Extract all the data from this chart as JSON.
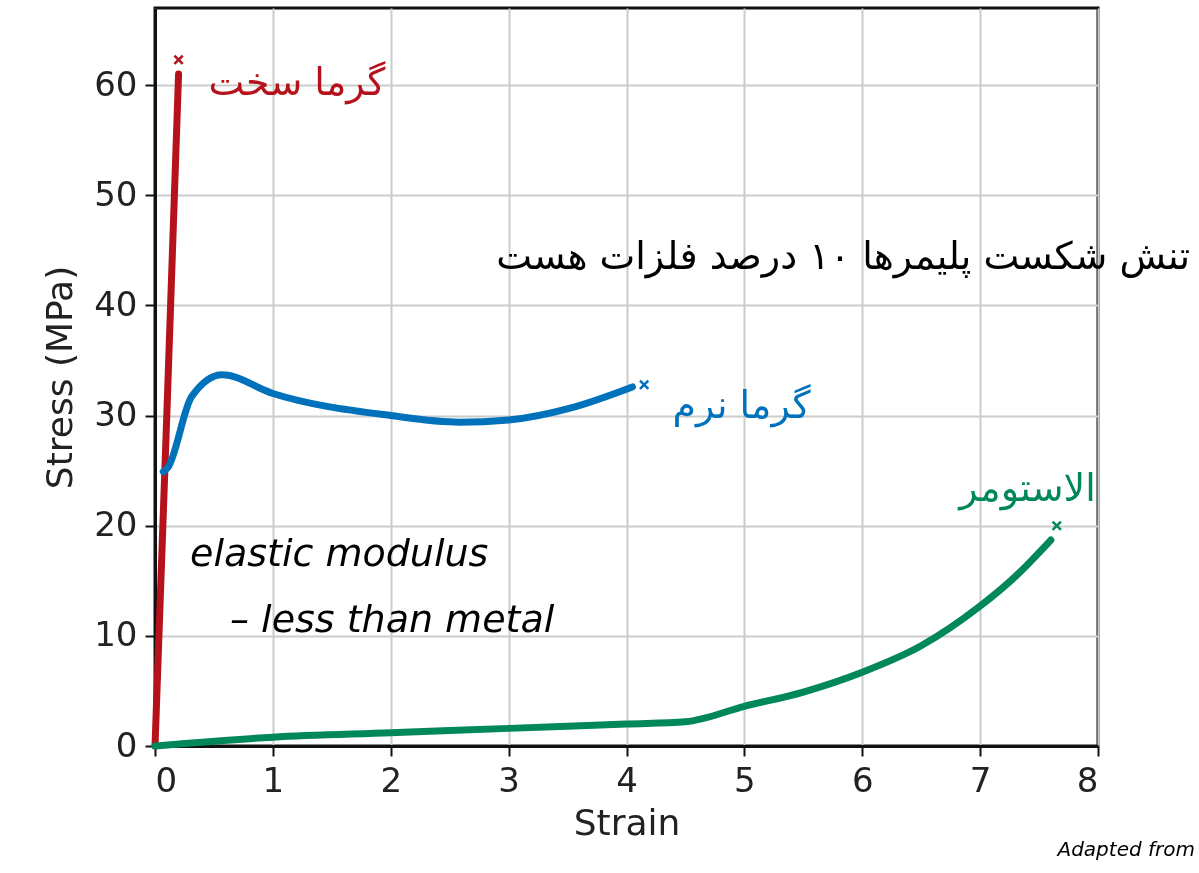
{
  "chart_data": {
    "type": "line",
    "xlabel": "Strain",
    "ylabel": "Stress (MPa)",
    "xlim": [
      0,
      8
    ],
    "ylim": [
      0,
      67
    ],
    "xticks": [
      0,
      1,
      2,
      3,
      4,
      5,
      6,
      7,
      8
    ],
    "yticks": [
      0,
      10,
      20,
      30,
      40,
      50,
      60
    ],
    "grid": true,
    "series": [
      {
        "name": "گرما سخت",
        "color": "#b5121b",
        "x": [
          0,
          0.1,
          0.2
        ],
        "values": [
          0,
          30,
          61
        ]
      },
      {
        "name": "گرما نرم",
        "color": "#0072bc",
        "x": [
          0.07,
          0.11,
          0.31,
          0.57,
          1.0,
          2.0,
          2.58,
          3.0,
          3.53,
          4.05
        ],
        "values": [
          24.9,
          25.3,
          31.7,
          33.7,
          32.0,
          30.0,
          29.4,
          29.6,
          30.7,
          32.6
        ]
      },
      {
        "name": "الاستومر",
        "color": "#00875a",
        "x": [
          0,
          1,
          2,
          3,
          4,
          4.5,
          5,
          5.5,
          6,
          6.5,
          7,
          7.3,
          7.6
        ],
        "values": [
          0,
          0.8,
          1.2,
          1.6,
          2.0,
          2.2,
          3.6,
          4.9,
          6.7,
          9.1,
          12.7,
          15.4,
          18.7
        ]
      },
      {
        "type": "scatter",
        "marker": "cross",
        "color": "#b5121b",
        "x": [
          0.2
        ],
        "values": [
          62.3
        ]
      },
      {
        "type": "scatter",
        "marker": "cross",
        "color": "#0072bc",
        "x": [
          4.15
        ],
        "values": [
          32.8
        ]
      },
      {
        "type": "scatter",
        "marker": "cross",
        "color": "#00875a",
        "x": [
          7.65
        ],
        "values": [
          20
        ]
      }
    ],
    "annotations": [
      "تنش شکست پلیمرها ۱۰ درصد فلزات هست",
      "elastic modulus\n– less than metal",
      "Adapted from"
    ]
  }
}
